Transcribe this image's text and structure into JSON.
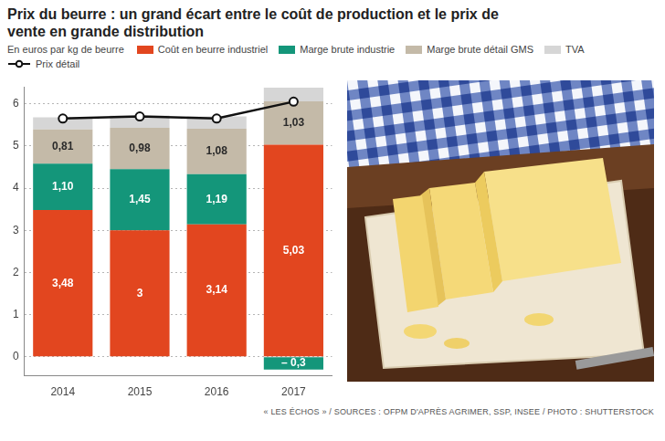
{
  "chart_data": {
    "type": "bar",
    "title": "Prix du beurre : un grand écart entre le coût de production et le prix de vente en grande distribution",
    "subtitle": "En euros par kg de beurre",
    "source": "« LES ÉCHOS » / SOURCES : OFPM D'APRÈS AGRIMER, SSP, INSEE / PHOTO : SHUTTERSTOCK",
    "categories": [
      "2014",
      "2015",
      "2016",
      "2017"
    ],
    "stacked": true,
    "grid": true,
    "legend": "top",
    "ylim": [
      -0.45,
      6.4
    ],
    "yticks": [
      0,
      1,
      2,
      3,
      4,
      5,
      6
    ],
    "series": [
      {
        "name": "Coût en beurre industriel",
        "color": "#e2461f",
        "values": [
          3.48,
          3,
          3.14,
          5.03
        ],
        "data_labels": true,
        "value_labels": [
          "3,48",
          "3",
          "3,14",
          "5,03"
        ]
      },
      {
        "name": "Marge brute industrie",
        "color": "#14967a",
        "values": [
          1.1,
          1.45,
          1.19,
          -0.3
        ],
        "data_labels": true,
        "value_labels": [
          "1,10",
          "1,45",
          "1,19",
          "– 0,3"
        ]
      },
      {
        "name": "Marge brute détail GMS",
        "color": "#c4baa8",
        "values": [
          0.81,
          0.98,
          1.08,
          1.03
        ],
        "data_labels": true,
        "value_labels": [
          "0,81",
          "0,98",
          "1,08",
          "1,03"
        ]
      },
      {
        "name": "TVA",
        "color": "#d6d6d6",
        "values": [
          0.29,
          0.29,
          0.29,
          0.32
        ],
        "data_labels": false
      },
      {
        "name": "Prix détail",
        "type": "line",
        "color": "#111111",
        "marker": "circle",
        "line_style": "solid",
        "values": [
          5.65,
          5.7,
          5.65,
          6.05
        ],
        "data_labels": false
      }
    ]
  }
}
